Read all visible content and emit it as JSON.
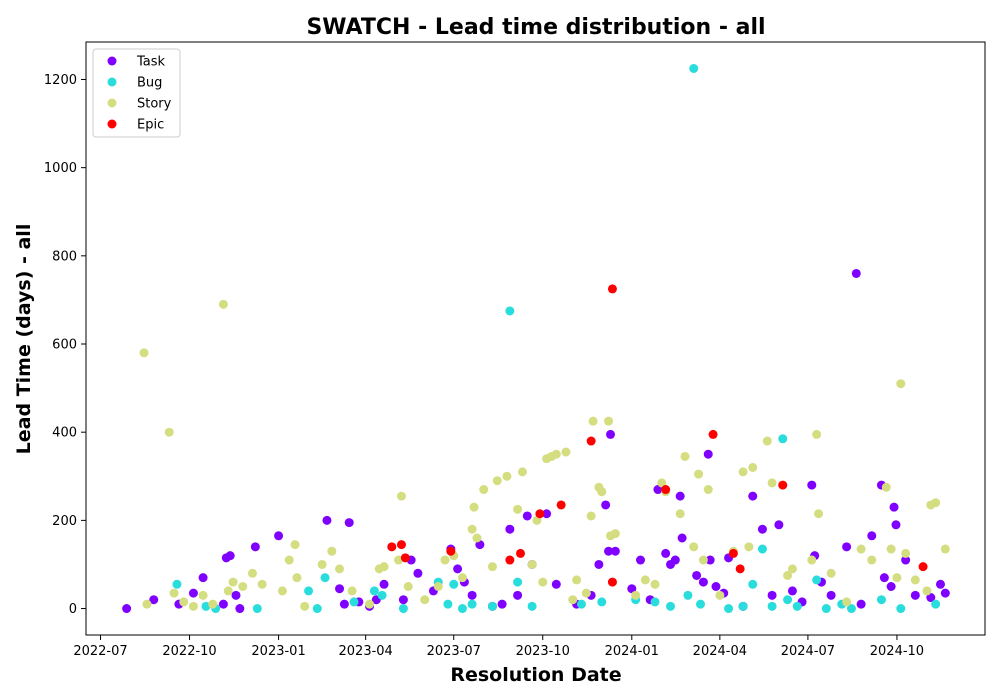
{
  "chart_data": {
    "type": "scatter",
    "title": "SWATCH - Lead time distribution - all",
    "xlabel": "Resolution Date",
    "ylabel": "Lead Time (days) - all",
    "x_ticks": [
      "2022-07",
      "2022-10",
      "2023-01",
      "2023-04",
      "2023-07",
      "2023-10",
      "2024-01",
      "2024-04",
      "2024-07",
      "2024-10"
    ],
    "x_range": [
      "2022-06-16",
      "2024-12-31"
    ],
    "y_ticks": [
      "0",
      "200",
      "400",
      "600",
      "800",
      "1000",
      "1200"
    ],
    "ylim": [
      -60,
      1285
    ],
    "grid": false,
    "legend_position": "top-left",
    "colors": {
      "Task": "#8000ff",
      "Bug": "#2adddd",
      "Story": "#d4dd80",
      "Epic": "#ff0000"
    },
    "series": [
      {
        "name": "Task",
        "points": [
          [
            "2022-07-28",
            0
          ],
          [
            "2022-08-25",
            20
          ],
          [
            "2022-09-20",
            10
          ],
          [
            "2022-10-05",
            35
          ],
          [
            "2022-10-15",
            70
          ],
          [
            "2022-11-05",
            10
          ],
          [
            "2022-11-08",
            115
          ],
          [
            "2022-11-12",
            120
          ],
          [
            "2022-11-18",
            30
          ],
          [
            "2022-11-22",
            0
          ],
          [
            "2022-12-08",
            140
          ],
          [
            "2023-01-01",
            165
          ],
          [
            "2023-02-20",
            200
          ],
          [
            "2023-03-05",
            45
          ],
          [
            "2023-03-10",
            10
          ],
          [
            "2023-03-15",
            195
          ],
          [
            "2023-03-25",
            15
          ],
          [
            "2023-04-05",
            5
          ],
          [
            "2023-04-12",
            20
          ],
          [
            "2023-04-20",
            55
          ],
          [
            "2023-05-10",
            20
          ],
          [
            "2023-05-18",
            110
          ],
          [
            "2023-05-25",
            80
          ],
          [
            "2023-06-10",
            40
          ],
          [
            "2023-06-28",
            135
          ],
          [
            "2023-07-05",
            90
          ],
          [
            "2023-07-12",
            60
          ],
          [
            "2023-07-20",
            30
          ],
          [
            "2023-07-28",
            145
          ],
          [
            "2023-08-10",
            5
          ],
          [
            "2023-08-20",
            10
          ],
          [
            "2023-08-28",
            180
          ],
          [
            "2023-09-05",
            30
          ],
          [
            "2023-09-15",
            210
          ],
          [
            "2023-09-20",
            100
          ],
          [
            "2023-10-05",
            215
          ],
          [
            "2023-10-15",
            55
          ],
          [
            "2023-11-05",
            10
          ],
          [
            "2023-11-20",
            30
          ],
          [
            "2023-11-28",
            100
          ],
          [
            "2023-12-05",
            235
          ],
          [
            "2023-12-08",
            130
          ],
          [
            "2023-12-10",
            395
          ],
          [
            "2023-12-15",
            130
          ],
          [
            "2024-01-01",
            45
          ],
          [
            "2024-01-10",
            110
          ],
          [
            "2024-01-20",
            20
          ],
          [
            "2024-01-28",
            270
          ],
          [
            "2024-02-05",
            125
          ],
          [
            "2024-02-10",
            100
          ],
          [
            "2024-02-15",
            110
          ],
          [
            "2024-02-20",
            255
          ],
          [
            "2024-02-22",
            160
          ],
          [
            "2024-03-08",
            75
          ],
          [
            "2024-03-15",
            60
          ],
          [
            "2024-03-20",
            350
          ],
          [
            "2024-03-22",
            110
          ],
          [
            "2024-03-28",
            50
          ],
          [
            "2024-04-05",
            35
          ],
          [
            "2024-04-10",
            115
          ],
          [
            "2024-04-25",
            5
          ],
          [
            "2024-05-05",
            255
          ],
          [
            "2024-05-15",
            180
          ],
          [
            "2024-05-25",
            30
          ],
          [
            "2024-06-01",
            190
          ],
          [
            "2024-06-15",
            40
          ],
          [
            "2024-06-25",
            15
          ],
          [
            "2024-07-05",
            280
          ],
          [
            "2024-07-08",
            120
          ],
          [
            "2024-07-15",
            60
          ],
          [
            "2024-07-25",
            30
          ],
          [
            "2024-08-10",
            140
          ],
          [
            "2024-08-20",
            760
          ],
          [
            "2024-08-25",
            10
          ],
          [
            "2024-09-05",
            165
          ],
          [
            "2024-09-15",
            280
          ],
          [
            "2024-09-18",
            70
          ],
          [
            "2024-09-25",
            50
          ],
          [
            "2024-09-28",
            230
          ],
          [
            "2024-09-30",
            190
          ],
          [
            "2024-10-10",
            110
          ],
          [
            "2024-10-20",
            30
          ],
          [
            "2024-11-05",
            25
          ],
          [
            "2024-11-15",
            55
          ],
          [
            "2024-11-20",
            35
          ]
        ]
      },
      {
        "name": "Bug",
        "points": [
          [
            "2022-09-18",
            55
          ],
          [
            "2022-10-18",
            5
          ],
          [
            "2022-10-28",
            0
          ],
          [
            "2022-12-10",
            0
          ],
          [
            "2023-02-01",
            40
          ],
          [
            "2023-02-10",
            0
          ],
          [
            "2023-02-18",
            70
          ],
          [
            "2023-03-20",
            15
          ],
          [
            "2023-04-10",
            40
          ],
          [
            "2023-04-18",
            30
          ],
          [
            "2023-05-10",
            0
          ],
          [
            "2023-06-15",
            60
          ],
          [
            "2023-06-25",
            10
          ],
          [
            "2023-07-01",
            55
          ],
          [
            "2023-07-10",
            0
          ],
          [
            "2023-07-20",
            10
          ],
          [
            "2023-08-10",
            5
          ],
          [
            "2023-08-28",
            675
          ],
          [
            "2023-09-05",
            60
          ],
          [
            "2023-09-20",
            5
          ],
          [
            "2023-11-10",
            10
          ],
          [
            "2023-12-01",
            15
          ],
          [
            "2024-01-05",
            20
          ],
          [
            "2024-01-25",
            15
          ],
          [
            "2024-02-10",
            5
          ],
          [
            "2024-02-28",
            30
          ],
          [
            "2024-03-05",
            1225
          ],
          [
            "2024-03-12",
            10
          ],
          [
            "2024-04-10",
            0
          ],
          [
            "2024-04-25",
            5
          ],
          [
            "2024-05-05",
            55
          ],
          [
            "2024-05-15",
            135
          ],
          [
            "2024-05-25",
            5
          ],
          [
            "2024-06-05",
            385
          ],
          [
            "2024-06-10",
            20
          ],
          [
            "2024-06-20",
            5
          ],
          [
            "2024-07-10",
            65
          ],
          [
            "2024-07-20",
            0
          ],
          [
            "2024-08-05",
            10
          ],
          [
            "2024-08-15",
            0
          ],
          [
            "2024-09-15",
            20
          ],
          [
            "2024-10-05",
            0
          ],
          [
            "2024-11-10",
            10
          ]
        ]
      },
      {
        "name": "Story",
        "points": [
          [
            "2022-08-15",
            580
          ],
          [
            "2022-08-18",
            10
          ],
          [
            "2022-09-10",
            400
          ],
          [
            "2022-09-15",
            35
          ],
          [
            "2022-09-25",
            15
          ],
          [
            "2022-10-05",
            5
          ],
          [
            "2022-10-15",
            30
          ],
          [
            "2022-10-25",
            10
          ],
          [
            "2022-11-05",
            690
          ],
          [
            "2022-11-10",
            40
          ],
          [
            "2022-11-15",
            60
          ],
          [
            "2022-11-25",
            50
          ],
          [
            "2022-12-05",
            80
          ],
          [
            "2022-12-15",
            55
          ],
          [
            "2023-01-05",
            40
          ],
          [
            "2023-01-12",
            110
          ],
          [
            "2023-01-18",
            145
          ],
          [
            "2023-01-20",
            70
          ],
          [
            "2023-01-28",
            5
          ],
          [
            "2023-02-15",
            100
          ],
          [
            "2023-02-25",
            130
          ],
          [
            "2023-03-05",
            90
          ],
          [
            "2023-03-18",
            40
          ],
          [
            "2023-04-05",
            10
          ],
          [
            "2023-04-15",
            90
          ],
          [
            "2023-04-20",
            95
          ],
          [
            "2023-05-05",
            110
          ],
          [
            "2023-05-08",
            255
          ],
          [
            "2023-05-15",
            50
          ],
          [
            "2023-06-01",
            20
          ],
          [
            "2023-06-15",
            50
          ],
          [
            "2023-06-22",
            110
          ],
          [
            "2023-07-01",
            120
          ],
          [
            "2023-07-10",
            70
          ],
          [
            "2023-07-20",
            180
          ],
          [
            "2023-07-22",
            230
          ],
          [
            "2023-07-25",
            160
          ],
          [
            "2023-08-01",
            270
          ],
          [
            "2023-08-10",
            95
          ],
          [
            "2023-08-15",
            290
          ],
          [
            "2023-08-25",
            300
          ],
          [
            "2023-09-05",
            225
          ],
          [
            "2023-09-10",
            310
          ],
          [
            "2023-09-20",
            100
          ],
          [
            "2023-09-25",
            200
          ],
          [
            "2023-10-01",
            60
          ],
          [
            "2023-10-05",
            340
          ],
          [
            "2023-10-10",
            345
          ],
          [
            "2023-10-15",
            350
          ],
          [
            "2023-10-25",
            355
          ],
          [
            "2023-11-01",
            20
          ],
          [
            "2023-11-05",
            65
          ],
          [
            "2023-11-15",
            35
          ],
          [
            "2023-11-20",
            210
          ],
          [
            "2023-11-22",
            425
          ],
          [
            "2023-11-28",
            275
          ],
          [
            "2023-12-01",
            265
          ],
          [
            "2023-12-08",
            425
          ],
          [
            "2023-12-10",
            165
          ],
          [
            "2023-12-15",
            170
          ],
          [
            "2024-01-05",
            30
          ],
          [
            "2024-01-15",
            65
          ],
          [
            "2024-01-25",
            55
          ],
          [
            "2024-02-01",
            285
          ],
          [
            "2024-02-05",
            265
          ],
          [
            "2024-02-20",
            215
          ],
          [
            "2024-02-25",
            345
          ],
          [
            "2024-03-05",
            140
          ],
          [
            "2024-03-10",
            305
          ],
          [
            "2024-03-15",
            110
          ],
          [
            "2024-03-20",
            270
          ],
          [
            "2024-04-01",
            30
          ],
          [
            "2024-04-15",
            130
          ],
          [
            "2024-04-25",
            310
          ],
          [
            "2024-05-01",
            140
          ],
          [
            "2024-05-05",
            320
          ],
          [
            "2024-05-20",
            380
          ],
          [
            "2024-05-25",
            285
          ],
          [
            "2024-06-10",
            75
          ],
          [
            "2024-06-15",
            90
          ],
          [
            "2024-07-05",
            110
          ],
          [
            "2024-07-10",
            395
          ],
          [
            "2024-07-12",
            215
          ],
          [
            "2024-07-25",
            80
          ],
          [
            "2024-08-10",
            15
          ],
          [
            "2024-08-25",
            135
          ],
          [
            "2024-09-05",
            110
          ],
          [
            "2024-09-20",
            275
          ],
          [
            "2024-09-25",
            135
          ],
          [
            "2024-10-01",
            70
          ],
          [
            "2024-10-05",
            510
          ],
          [
            "2024-10-10",
            125
          ],
          [
            "2024-10-20",
            65
          ],
          [
            "2024-11-01",
            40
          ],
          [
            "2024-11-05",
            235
          ],
          [
            "2024-11-10",
            240
          ],
          [
            "2024-11-20",
            135
          ]
        ]
      },
      {
        "name": "Epic",
        "points": [
          [
            "2023-04-28",
            140
          ],
          [
            "2023-05-08",
            145
          ],
          [
            "2023-05-12",
            115
          ],
          [
            "2023-06-28",
            130
          ],
          [
            "2023-08-28",
            110
          ],
          [
            "2023-09-08",
            125
          ],
          [
            "2023-09-28",
            215
          ],
          [
            "2023-10-20",
            235
          ],
          [
            "2023-11-20",
            380
          ],
          [
            "2023-12-12",
            725
          ],
          [
            "2023-12-12",
            60
          ],
          [
            "2024-02-05",
            270
          ],
          [
            "2024-03-25",
            395
          ],
          [
            "2024-04-15",
            125
          ],
          [
            "2024-04-22",
            90
          ],
          [
            "2024-06-05",
            280
          ],
          [
            "2024-10-28",
            95
          ]
        ]
      }
    ]
  }
}
